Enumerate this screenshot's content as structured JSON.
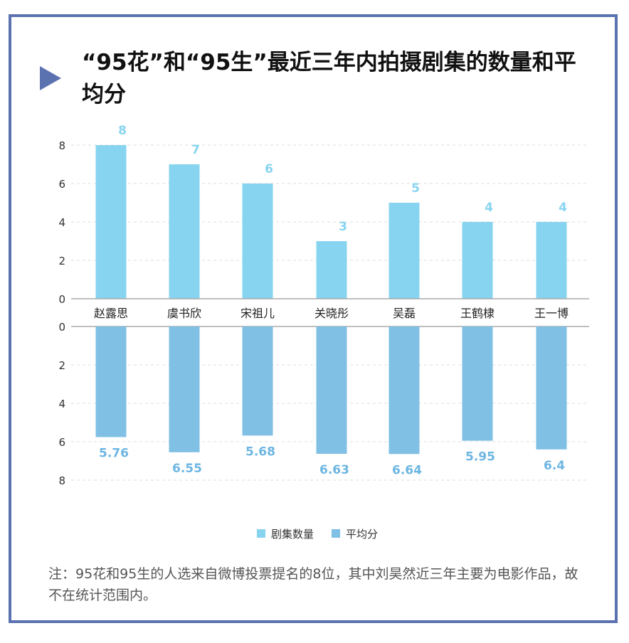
{
  "title": "“95花”和“95生”最近三年内拍摄剧集的数量和平均分",
  "note": "注：95花和95生的人选来自微博投票提名的8位，其中刘昊然近三年主要为电影作品，故不在统计范围内。",
  "colors": {
    "frame": "#5b72b0",
    "count_bar": "#87d4f0",
    "score_bar": "#7fc0e4",
    "count_label": "#87d4f0",
    "score_label": "#6db6e2"
  },
  "chart_data": {
    "type": "bar",
    "categories": [
      "赵露思",
      "虞书欣",
      "宋祖儿",
      "关晓彤",
      "吴磊",
      "王鹤棣",
      "王一博"
    ],
    "series": [
      {
        "name": "剧集数量",
        "values": [
          8,
          7,
          6,
          3,
          5,
          4,
          4
        ],
        "labels": [
          "8",
          "7",
          "6",
          "3",
          "5",
          "4",
          "4"
        ]
      },
      {
        "name": "平均分",
        "values": [
          5.76,
          6.55,
          5.68,
          6.63,
          6.64,
          5.95,
          6.4
        ],
        "labels": [
          "5.76",
          "6.55",
          "5.68",
          "6.63",
          "6.64",
          "5.95",
          "6.4"
        ]
      }
    ],
    "upper_ticks": [
      "0",
      "2",
      "4",
      "6",
      "8"
    ],
    "lower_ticks": [
      "0",
      "2",
      "4",
      "6",
      "8"
    ],
    "ylim": [
      0,
      8
    ],
    "grid": true,
    "legend_position": "bottom-center"
  }
}
